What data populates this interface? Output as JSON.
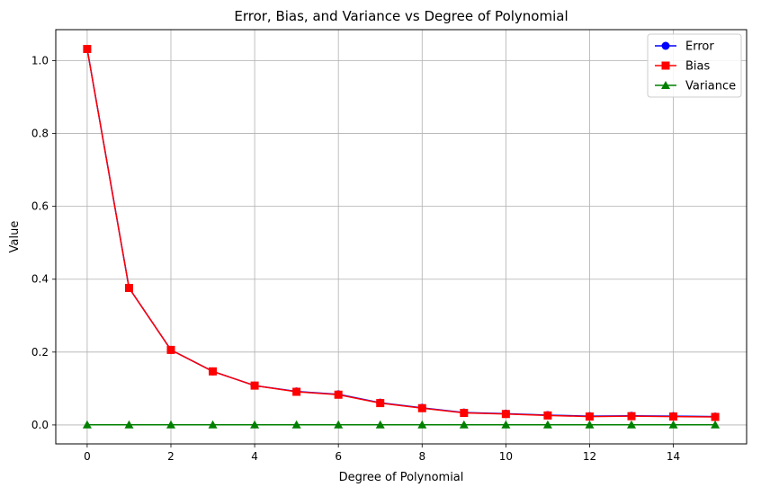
{
  "chart_data": {
    "type": "line",
    "title": "Error, Bias, and Variance vs Degree of Polynomial",
    "xlabel": "Degree of Polynomial",
    "ylabel": "Value",
    "x": [
      0,
      1,
      2,
      3,
      4,
      5,
      6,
      7,
      8,
      9,
      10,
      11,
      12,
      13,
      14,
      15
    ],
    "xlim": [
      -0.75,
      15.75
    ],
    "ylim": [
      -0.052,
      1.085
    ],
    "xticks": [
      0,
      2,
      4,
      6,
      8,
      10,
      12,
      14
    ],
    "xtick_labels": [
      "0",
      "2",
      "4",
      "6",
      "8",
      "10",
      "12",
      "14"
    ],
    "yticks": [
      0.0,
      0.2,
      0.4,
      0.6,
      0.8,
      1.0
    ],
    "ytick_labels": [
      "0.0",
      "0.2",
      "0.4",
      "0.6",
      "0.8",
      "1.0"
    ],
    "grid": true,
    "legend_position": "top-right",
    "series": [
      {
        "name": "Error",
        "color": "#0000ff",
        "marker": "circle",
        "values": [
          1.032,
          0.376,
          0.206,
          0.147,
          0.108,
          0.092,
          0.084,
          0.061,
          0.047,
          0.034,
          0.031,
          0.027,
          0.024,
          0.025,
          0.024,
          0.023
        ]
      },
      {
        "name": "Bias",
        "color": "#ff0000",
        "marker": "square",
        "values": [
          1.032,
          0.376,
          0.206,
          0.147,
          0.108,
          0.091,
          0.083,
          0.06,
          0.046,
          0.033,
          0.03,
          0.026,
          0.023,
          0.024,
          0.023,
          0.022
        ]
      },
      {
        "name": "Variance",
        "color": "#008000",
        "marker": "triangle",
        "values": [
          0.0003,
          0.0003,
          0.0003,
          0.0003,
          0.0003,
          0.0003,
          0.0003,
          0.0003,
          0.0003,
          0.0003,
          0.0003,
          0.0003,
          0.0003,
          0.0003,
          0.0003,
          0.0003
        ]
      }
    ]
  }
}
